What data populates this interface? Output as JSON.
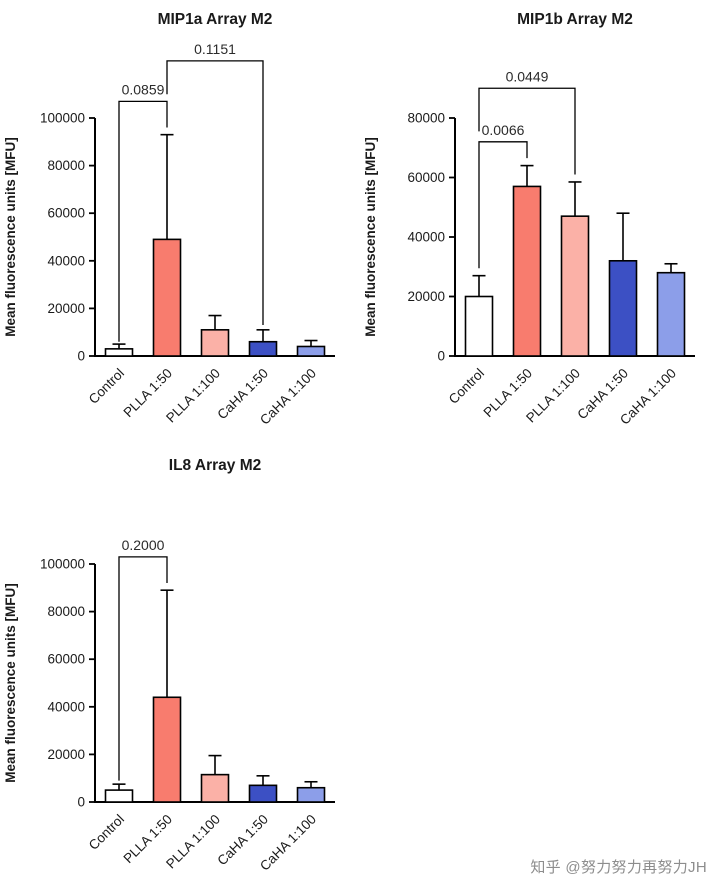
{
  "page": {
    "background": "#FFFFFF"
  },
  "watermark": {
    "text": "知乎 @努力努力再努力JH",
    "color": "#8D8D8D"
  },
  "style": {
    "bar_colors": [
      "#FFFFFF",
      "#F87C6E",
      "#FBB1A7",
      "#3C50C4",
      "#8C9EE9"
    ],
    "bar_border": "#000000",
    "axis_color": "#000000",
    "text_color": "#1A1A1A",
    "pvalue_color": "#2B2B2B"
  },
  "chart_data": [
    {
      "type": "bar",
      "title": "MIP1a Array M2",
      "ylabel": "Mean fluorescence units [MFU]",
      "xlabel": "",
      "ylim": [
        0,
        100000
      ],
      "ytick_step": 20000,
      "grid": false,
      "legend": "none",
      "categories": [
        "Control",
        "PLLA 1:50",
        "PLLA 1:100",
        "CaHA 1:50",
        "CaHA 1:100"
      ],
      "values": [
        3000,
        49000,
        11000,
        6000,
        4000
      ],
      "errors_up": [
        2000,
        44000,
        6000,
        5000,
        2500
      ],
      "comparisons": [
        {
          "label": "0.0859",
          "from": 0,
          "to": 1,
          "left_start": 6000,
          "top": 107000,
          "right_start": 96000
        },
        {
          "label": "0.1151",
          "from": 1,
          "to": 3,
          "left_start": 110000,
          "top": 124000,
          "right_start": 13000
        }
      ]
    },
    {
      "type": "bar",
      "title": "MIP1b Array M2",
      "ylabel": "Mean fluorescence units [MFU]",
      "xlabel": "",
      "ylim": [
        0,
        80000
      ],
      "ytick_step": 20000,
      "grid": false,
      "legend": "none",
      "categories": [
        "Control",
        "PLLA 1:50",
        "PLLA 1:100",
        "CaHA 1:50",
        "CaHA 1:100"
      ],
      "values": [
        20000,
        57000,
        47000,
        32000,
        28000
      ],
      "errors_up": [
        7000,
        7000,
        11500,
        16000,
        3000
      ],
      "comparisons": [
        {
          "label": "0.0066",
          "from": 0,
          "to": 1,
          "left_start": 29500,
          "top": 72000,
          "right_start": 66500
        },
        {
          "label": "0.0449",
          "from": 0,
          "to": 2,
          "left_start": 75500,
          "top": 90000,
          "right_start": 61000
        }
      ]
    },
    {
      "type": "bar",
      "title": "IL8 Array M2",
      "ylabel": "Mean fluorescence units [MFU]",
      "xlabel": "",
      "ylim": [
        0,
        100000
      ],
      "ytick_step": 20000,
      "grid": false,
      "legend": "none",
      "categories": [
        "Control",
        "PLLA 1:50",
        "PLLA 1:100",
        "CaHA 1:50",
        "CaHA 1:100"
      ],
      "values": [
        5000,
        44000,
        11500,
        7000,
        6000
      ],
      "errors_up": [
        2500,
        45000,
        8000,
        4000,
        2500
      ],
      "comparisons": [
        {
          "label": "0.2000",
          "from": 0,
          "to": 1,
          "left_start": 9000,
          "top": 103000,
          "right_start": 92000
        }
      ]
    }
  ]
}
